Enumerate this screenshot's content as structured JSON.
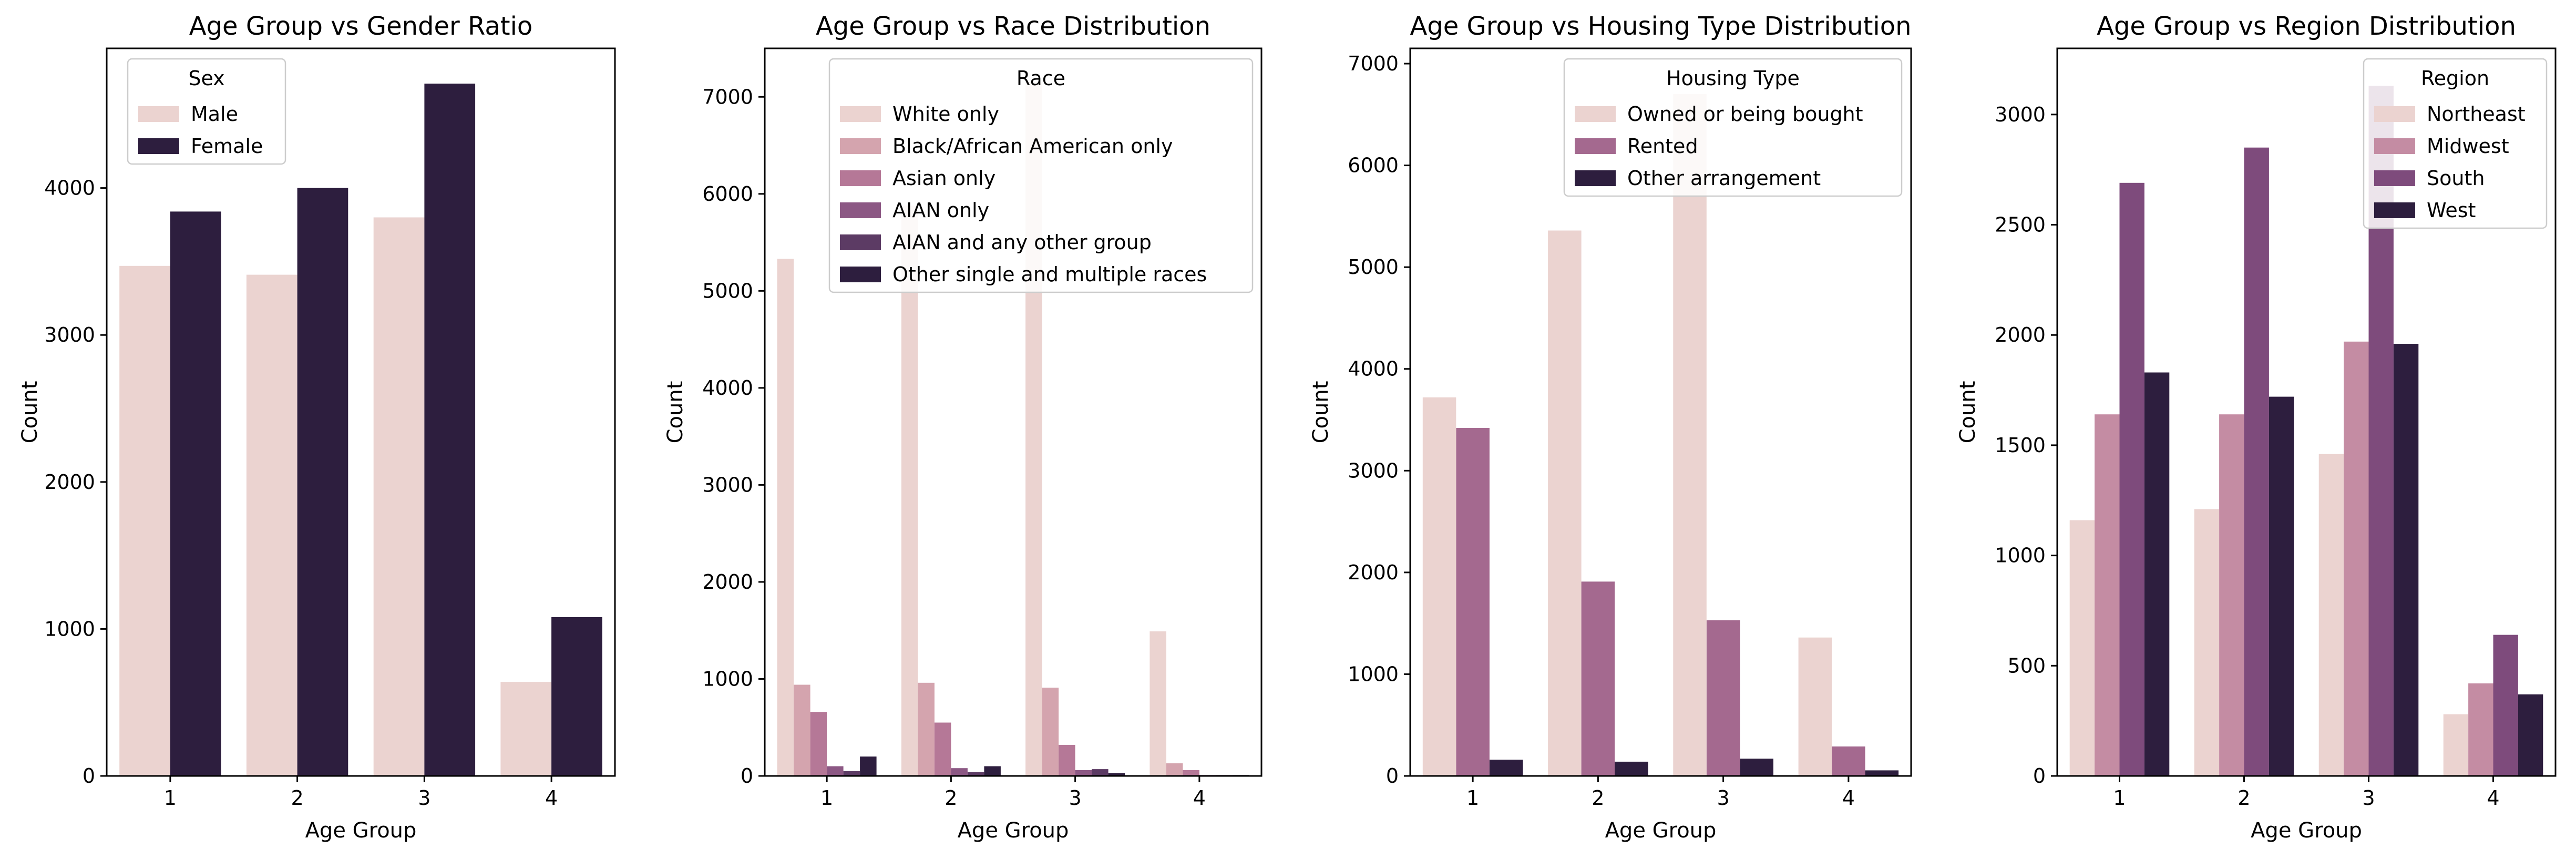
{
  "chart_data": [
    {
      "type": "bar",
      "title": "Age Group vs Gender Ratio",
      "xlabel": "Age Group",
      "ylabel": "Count",
      "categories": [
        "1",
        "2",
        "3",
        "4"
      ],
      "ylim": [
        0,
        4950
      ],
      "yticks": [
        0,
        1000,
        2000,
        3000,
        4000
      ],
      "legend_title": "Sex",
      "legend_placement": "upper-left",
      "series": [
        {
          "name": "Male",
          "color": "#ebd3d0",
          "values": [
            3470,
            3410,
            3800,
            640
          ]
        },
        {
          "name": "Female",
          "color": "#2d1e3e",
          "values": [
            3840,
            4000,
            4710,
            1080
          ]
        }
      ]
    },
    {
      "type": "bar",
      "title": "Age Group vs Race Distribution",
      "xlabel": "Age Group",
      "ylabel": "Count",
      "categories": [
        "1",
        "2",
        "3",
        "4"
      ],
      "ylim": [
        0,
        7500
      ],
      "yticks": [
        0,
        1000,
        2000,
        3000,
        4000,
        5000,
        6000,
        7000
      ],
      "legend_title": "Race",
      "legend_placement": "upper-right",
      "series": [
        {
          "name": "White only",
          "color": "#ebd3d0",
          "values": [
            5330,
            5880,
            7150,
            1490
          ]
        },
        {
          "name": "Black/African American only",
          "color": "#d4a4ae",
          "values": [
            940,
            960,
            910,
            130
          ]
        },
        {
          "name": "Asian only",
          "color": "#b57897",
          "values": [
            660,
            550,
            320,
            60
          ]
        },
        {
          "name": "AIAN only",
          "color": "#8c5884",
          "values": [
            100,
            80,
            60,
            10
          ]
        },
        {
          "name": "AIAN and any other group",
          "color": "#5c3b64",
          "values": [
            50,
            40,
            70,
            10
          ]
        },
        {
          "name": "Other single and multiple races",
          "color": "#2d1e3e",
          "values": [
            200,
            100,
            30,
            10
          ]
        }
      ]
    },
    {
      "type": "bar",
      "title": "Age Group vs Housing Type Distribution",
      "xlabel": "Age Group",
      "ylabel": "Count",
      "categories": [
        "1",
        "2",
        "3",
        "4"
      ],
      "ylim": [
        0,
        7150
      ],
      "yticks": [
        0,
        1000,
        2000,
        3000,
        4000,
        5000,
        6000,
        7000
      ],
      "legend_title": "Housing Type",
      "legend_placement": "upper-right",
      "series": [
        {
          "name": "Owned or being bought",
          "color": "#ebd3d0",
          "values": [
            3720,
            5360,
            6700,
            1360
          ]
        },
        {
          "name": "Rented",
          "color": "#a4698f",
          "values": [
            3420,
            1910,
            1530,
            290
          ]
        },
        {
          "name": "Other arrangement",
          "color": "#2d1e3e",
          "values": [
            160,
            140,
            170,
            55
          ]
        }
      ]
    },
    {
      "type": "bar",
      "title": "Age Group vs Region Distribution",
      "xlabel": "Age Group",
      "ylabel": "Count",
      "categories": [
        "1",
        "2",
        "3",
        "4"
      ],
      "ylim": [
        0,
        3300
      ],
      "yticks": [
        0,
        500,
        1000,
        1500,
        2000,
        2500,
        3000
      ],
      "legend_title": "Region",
      "legend_placement": "upper-right",
      "series": [
        {
          "name": "Northeast",
          "color": "#ebd3d0",
          "values": [
            1160,
            1210,
            1460,
            280
          ]
        },
        {
          "name": "Midwest",
          "color": "#c48ca3",
          "values": [
            1640,
            1640,
            1970,
            420
          ]
        },
        {
          "name": "South",
          "color": "#7e4b7c",
          "values": [
            2690,
            2850,
            3130,
            640
          ]
        },
        {
          "name": "West",
          "color": "#2d1e3e",
          "values": [
            1830,
            1720,
            1960,
            370
          ]
        }
      ]
    }
  ]
}
